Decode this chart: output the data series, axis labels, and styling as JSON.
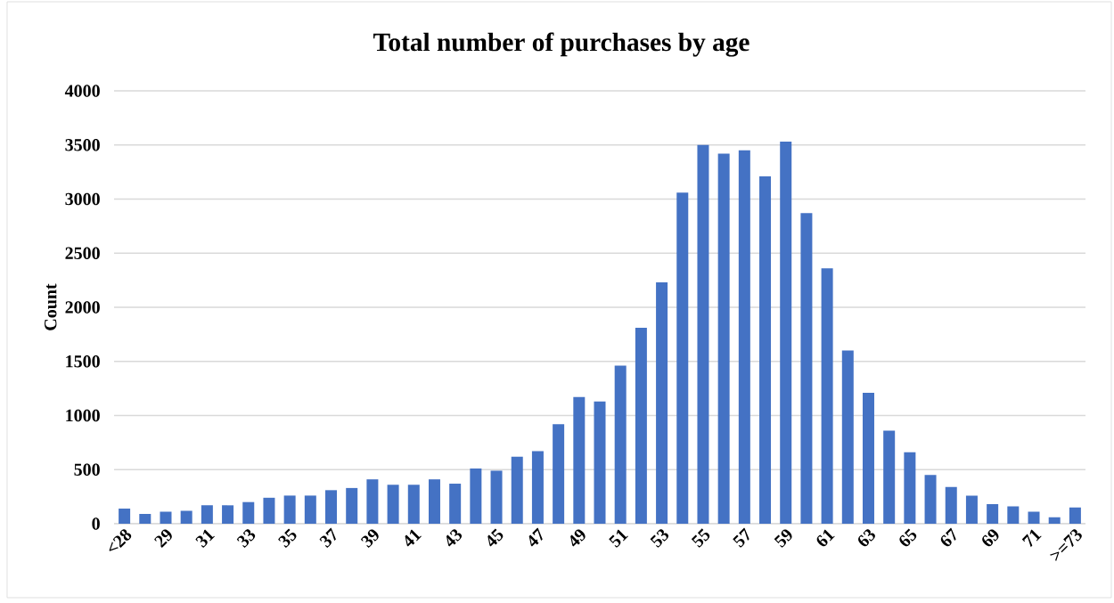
{
  "chart_data": {
    "type": "bar",
    "title": "Total number of purchases by age",
    "ylabel": "Count",
    "categories": [
      "<28",
      null,
      "29",
      null,
      "31",
      null,
      "33",
      null,
      "35",
      null,
      "37",
      null,
      "39",
      null,
      "41",
      null,
      "43",
      null,
      "45",
      null,
      "47",
      null,
      "49",
      null,
      "51",
      null,
      "53",
      null,
      "55",
      null,
      "57",
      null,
      "59",
      null,
      "61",
      null,
      "63",
      null,
      "65",
      null,
      "67",
      null,
      "69",
      null,
      "71",
      null,
      ">=73"
    ],
    "values": [
      140,
      90,
      110,
      120,
      170,
      170,
      200,
      240,
      260,
      260,
      310,
      330,
      410,
      360,
      360,
      410,
      370,
      510,
      490,
      620,
      670,
      920,
      1170,
      1130,
      1460,
      1810,
      2230,
      3060,
      3500,
      3420,
      3450,
      3210,
      3530,
      2870,
      2360,
      1600,
      1210,
      860,
      660,
      450,
      340,
      260,
      180,
      160,
      110,
      60,
      150
    ],
    "color": "#4472c4",
    "ylim": [
      0,
      4000
    ],
    "yticks": [
      0,
      500,
      1000,
      1500,
      2000,
      2500,
      3000,
      3500,
      4000
    ],
    "grid": "y"
  }
}
